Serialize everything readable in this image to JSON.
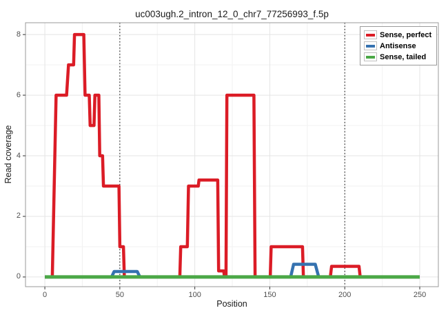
{
  "title": "uc003ugh.2_intron_12_0_chr7_77256993_f.5p",
  "axes": {
    "xlabel": "Position",
    "ylabel": "Read coverage"
  },
  "legend": {
    "position": "top-right"
  },
  "style": {
    "grid_major": "#e4e4e4",
    "grid_minor": "#f2f2f2",
    "panel_border": "#999999",
    "panel_bg": "#ffffff",
    "tick_color": "#333333",
    "tick_label_color": "#4d4d4d",
    "vline_color": "#000000"
  },
  "chart_data": {
    "type": "line",
    "subtype": "step-coverage",
    "title": "uc003ugh.2_intron_12_0_chr7_77256993_f.5p",
    "xlabel": "Position",
    "ylabel": "Read coverage",
    "xlim": [
      -12.9,
      262.4
    ],
    "ylim": [
      -0.32,
      8.39
    ],
    "xticks": [
      0,
      50,
      100,
      150,
      200,
      250
    ],
    "yticks": [
      0,
      2,
      4,
      6,
      8
    ],
    "minor_xticks": [
      25,
      75,
      125,
      175,
      225
    ],
    "minor_yticks": [
      1,
      3,
      5,
      7
    ],
    "vlines_dotted": [
      50,
      200
    ],
    "grid": true,
    "legend_position": "top-right",
    "series": [
      {
        "name": "Sense, perfect",
        "color": "#db1c26",
        "width": 4.5,
        "points": [
          [
            0,
            0
          ],
          [
            5,
            0
          ],
          [
            7.5,
            6
          ],
          [
            14.5,
            6
          ],
          [
            15.8,
            7
          ],
          [
            19.2,
            7
          ],
          [
            19.8,
            8
          ],
          [
            26,
            8
          ],
          [
            26.8,
            6
          ],
          [
            29.6,
            6
          ],
          [
            30.2,
            5
          ],
          [
            32.8,
            5
          ],
          [
            33.4,
            6
          ],
          [
            36,
            6
          ],
          [
            36.6,
            4
          ],
          [
            38.5,
            4
          ],
          [
            39.1,
            3
          ],
          [
            49.4,
            3
          ],
          [
            50,
            1
          ],
          [
            52.4,
            1
          ],
          [
            53,
            0
          ],
          [
            90,
            0
          ],
          [
            90.6,
            1
          ],
          [
            95,
            1
          ],
          [
            95.8,
            3
          ],
          [
            102.3,
            3
          ],
          [
            102.8,
            3.2
          ],
          [
            115.3,
            3.2
          ],
          [
            115.9,
            0.2
          ],
          [
            119.3,
            0.2
          ],
          [
            119.8,
            0
          ],
          [
            120.8,
            0
          ],
          [
            121.4,
            6
          ],
          [
            139.4,
            6
          ],
          [
            140.2,
            0
          ],
          [
            150.3,
            0
          ],
          [
            150.9,
            1
          ],
          [
            171.8,
            1
          ],
          [
            172.4,
            0
          ],
          [
            190.4,
            0
          ],
          [
            191.2,
            0.35
          ],
          [
            209.5,
            0.35
          ],
          [
            210.3,
            0
          ],
          [
            250,
            0
          ]
        ]
      },
      {
        "name": "Antisense",
        "color": "#3572b0",
        "width": 4.5,
        "points": [
          [
            0,
            0
          ],
          [
            44.5,
            0
          ],
          [
            46.2,
            0.18
          ],
          [
            61.6,
            0.18
          ],
          [
            63.4,
            0
          ],
          [
            163.9,
            0
          ],
          [
            165.9,
            0.42
          ],
          [
            180.3,
            0.42
          ],
          [
            182.6,
            0
          ],
          [
            250,
            0
          ]
        ]
      },
      {
        "name": "Sense, tailed",
        "color": "#4ba846",
        "width": 5,
        "points": [
          [
            0,
            0
          ],
          [
            250,
            0
          ]
        ]
      }
    ]
  }
}
